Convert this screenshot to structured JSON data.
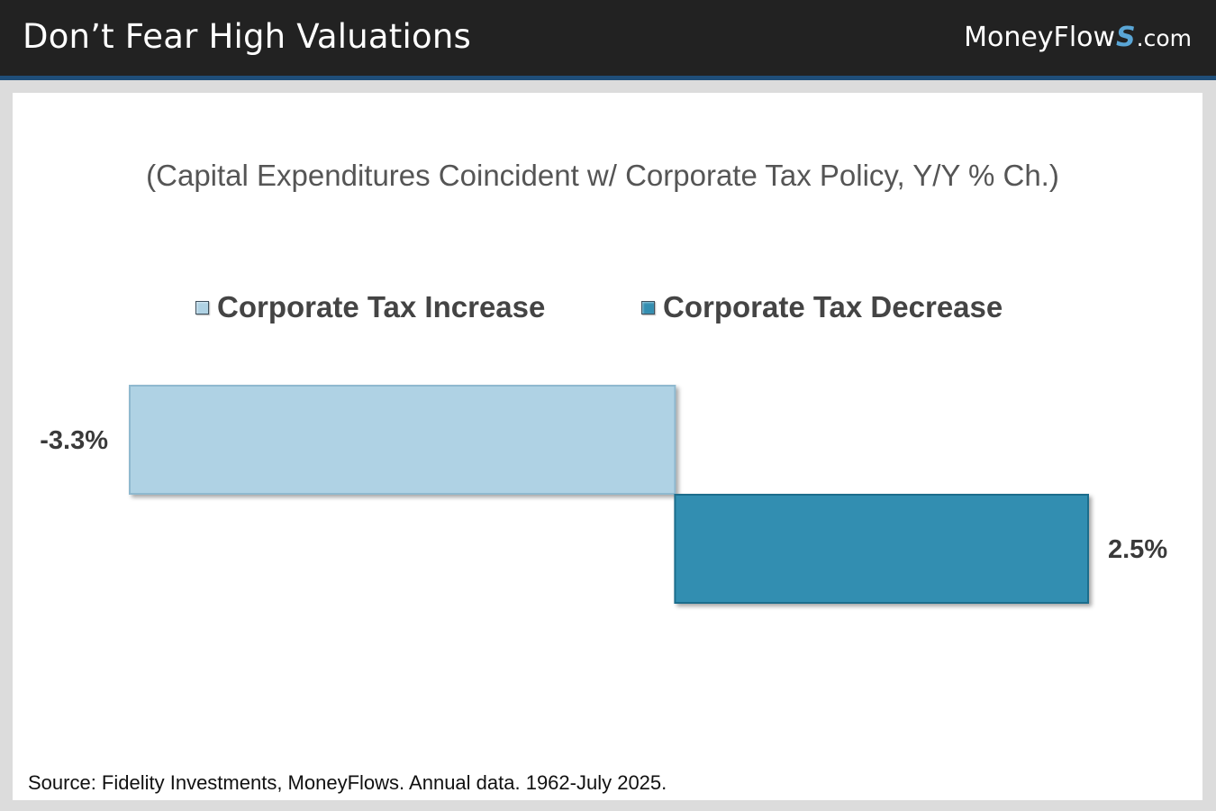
{
  "header": {
    "title": "Don’t Fear High Valuations",
    "brand": {
      "name": "MoneyFlow",
      "s_glyph": "S",
      "suffix": ".com"
    }
  },
  "colors": {
    "increase": "#afd2e4",
    "decrease": "#338eb1",
    "header_bg": "#222222",
    "header_rule": "#1f4e79"
  },
  "chart_data": {
    "type": "bar",
    "orientation": "horizontal",
    "title": "(Capital Expenditures Coincident w/ Corporate Tax Policy, Y/Y % Ch.)",
    "xlabel": "",
    "ylabel": "",
    "xlim": [
      -3.3,
      2.5
    ],
    "grid": false,
    "legend_position": "top-center",
    "series": [
      {
        "name": "Corporate Tax Increase",
        "value": -3.3,
        "label": "-3.3%",
        "color": "#afd2e4"
      },
      {
        "name": "Corporate Tax Decrease",
        "value": 2.5,
        "label": "2.5%",
        "color": "#338eb1"
      }
    ]
  },
  "footer": {
    "source": "Source: Fidelity Investments, MoneyFlows. Annual data. 1962-July 2025."
  }
}
